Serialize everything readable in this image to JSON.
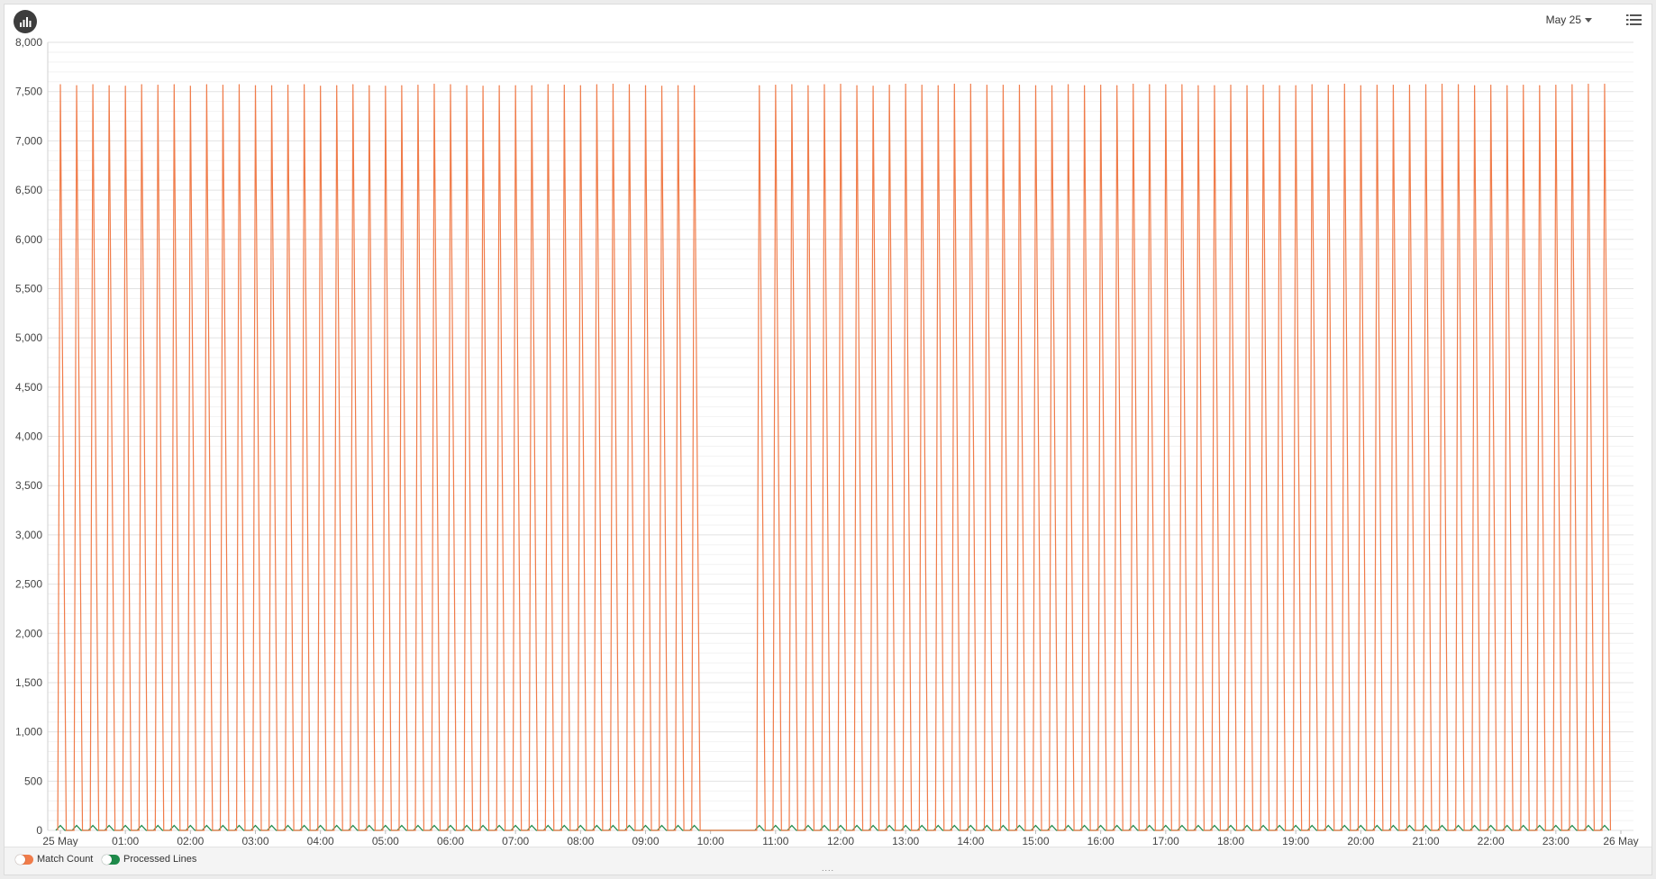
{
  "toolbar": {
    "date_selector": "May 25"
  },
  "icons": {
    "chart": "bar-chart-icon",
    "menu": "list-menu-icon",
    "caret": "caret-down-icon"
  },
  "legend": {
    "items": [
      {
        "label": "Match Count",
        "color": "#f07c4a"
      },
      {
        "label": "Processed Lines",
        "color": "#1e8a4a"
      }
    ],
    "resize_handle": "...."
  },
  "chart_data": {
    "type": "line",
    "xlabel": "",
    "ylabel": "",
    "x_tick_labels": [
      "25 May",
      "01:00",
      "02:00",
      "03:00",
      "04:00",
      "05:00",
      "06:00",
      "07:00",
      "08:00",
      "09:00",
      "10:00",
      "11:00",
      "12:00",
      "13:00",
      "14:00",
      "15:00",
      "16:00",
      "17:00",
      "18:00",
      "19:00",
      "20:00",
      "21:00",
      "22:00",
      "23:00",
      "26 May"
    ],
    "y_tick_labels": [
      "0",
      "500",
      "1,000",
      "1,500",
      "2,000",
      "2,500",
      "3,000",
      "3,500",
      "4,000",
      "4,500",
      "5,000",
      "5,500",
      "6,000",
      "6,500",
      "7,000",
      "7,500",
      "8,000"
    ],
    "ylim": [
      0,
      8000
    ],
    "xlim": [
      "2025-05-25 00:00",
      "2025-05-26 00:00"
    ],
    "grid": true,
    "legend_position": "bottom-left",
    "series": [
      {
        "name": "Match Count",
        "color": "#f07c4a",
        "pattern": "spike every 15 minutes to ~7,560 then back to 0; no data from 10:00 to ~10:40",
        "spike_times_hours": [
          0.0,
          0.25,
          0.5,
          0.75,
          1.0,
          1.25,
          1.5,
          1.75,
          2.0,
          2.25,
          2.5,
          2.75,
          3.0,
          3.25,
          3.5,
          3.75,
          4.0,
          4.25,
          4.5,
          4.75,
          5.0,
          5.25,
          5.5,
          5.75,
          6.0,
          6.25,
          6.5,
          6.75,
          7.0,
          7.25,
          7.5,
          7.75,
          8.0,
          8.25,
          8.5,
          8.75,
          9.0,
          9.25,
          9.5,
          9.75,
          10.75,
          11.0,
          11.25,
          11.5,
          11.75,
          12.0,
          12.25,
          12.5,
          12.75,
          13.0,
          13.25,
          13.5,
          13.75,
          14.0,
          14.25,
          14.5,
          14.75,
          15.0,
          15.25,
          15.5,
          15.75,
          16.0,
          16.25,
          16.5,
          16.75,
          17.0,
          17.25,
          17.5,
          17.75,
          18.0,
          18.25,
          18.5,
          18.75,
          19.0,
          19.25,
          19.5,
          19.75,
          20.0,
          20.25,
          20.5,
          20.75,
          21.0,
          21.25,
          21.5,
          21.75,
          22.0,
          22.25,
          22.5,
          22.75,
          23.0,
          23.25,
          23.5,
          23.75
        ],
        "spike_values": [
          7570,
          7560,
          7570,
          7560,
          7555,
          7570,
          7565,
          7570,
          7555,
          7570,
          7565,
          7570,
          7560,
          7560,
          7565,
          7570,
          7555,
          7560,
          7570,
          7560,
          7555,
          7560,
          7565,
          7575,
          7570,
          7560,
          7555,
          7560,
          7560,
          7560,
          7570,
          7565,
          7560,
          7570,
          7575,
          7570,
          7560,
          7555,
          7560,
          7560,
          7560,
          7565,
          7570,
          7560,
          7570,
          7575,
          7560,
          7555,
          7565,
          7575,
          7565,
          7560,
          7575,
          7575,
          7565,
          7565,
          7565,
          7560,
          7560,
          7570,
          7560,
          7565,
          7560,
          7575,
          7570,
          7570,
          7570,
          7560,
          7560,
          7565,
          7560,
          7565,
          7560,
          7560,
          7570,
          7565,
          7575,
          7560,
          7565,
          7565,
          7565,
          7570,
          7575,
          7570,
          7560,
          7565,
          7560,
          7565,
          7560,
          7565,
          7570,
          7575,
          7575
        ]
      },
      {
        "name": "Processed Lines",
        "color": "#1e8a4a",
        "pattern": "small bumps of ~50 every 15 minutes; flat 0 from 10:00 to ~10:40",
        "bump_value": 50
      }
    ]
  }
}
